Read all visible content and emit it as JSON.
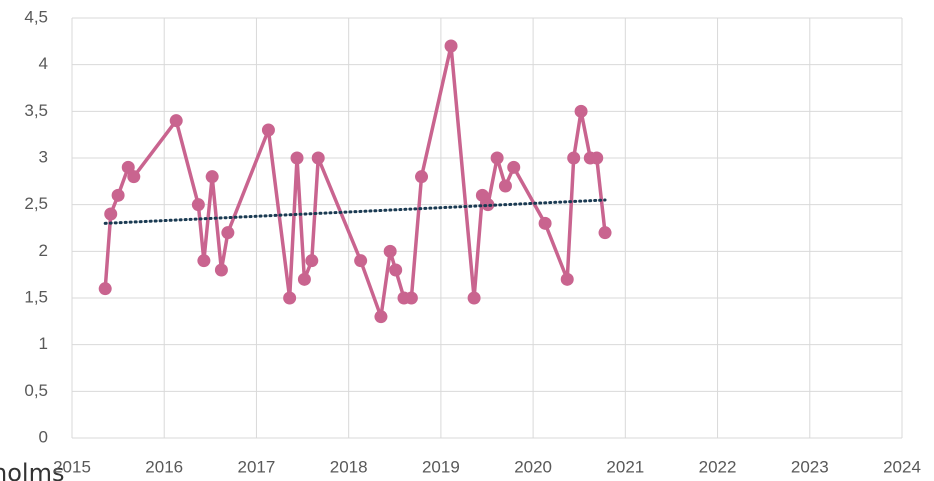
{
  "chart_data": {
    "type": "line",
    "annotation": "holms",
    "xlim": [
      2015,
      2024
    ],
    "xticks": [
      2015,
      2016,
      2017,
      2018,
      2019,
      2020,
      2021,
      2022,
      2023,
      2024
    ],
    "ylim": [
      0,
      4.5
    ],
    "yticks": [
      0,
      {
        "value": 0.5,
        "label": "0,5"
      },
      1,
      {
        "value": 1.5,
        "label": "1,5"
      },
      2,
      {
        "value": 2.5,
        "label": "2,5"
      },
      3,
      {
        "value": 3.5,
        "label": "3,5"
      },
      4,
      {
        "value": 4.5,
        "label": "4,5"
      }
    ],
    "grid": true,
    "x": [
      2015.36,
      2015.42,
      2015.5,
      2015.61,
      2015.67,
      2016.13,
      2016.37,
      2016.43,
      2016.52,
      2016.62,
      2016.69,
      2017.13,
      2017.36,
      2017.44,
      2017.52,
      2017.6,
      2017.67,
      2018.13,
      2018.35,
      2018.45,
      2018.51,
      2018.6,
      2018.68,
      2018.79,
      2019.11,
      2019.36,
      2019.45,
      2019.51,
      2019.61,
      2019.7,
      2019.79,
      2020.13,
      2020.37,
      2020.44,
      2020.52,
      2020.62,
      2020.69,
      2020.78
    ],
    "series": [
      {
        "color": "#c9648f",
        "values": [
          1.6,
          2.4,
          2.6,
          2.9,
          2.8,
          3.4,
          2.5,
          1.9,
          2.8,
          1.8,
          2.2,
          3.3,
          1.5,
          3.0,
          1.7,
          1.9,
          3.0,
          1.9,
          1.3,
          2.0,
          1.8,
          1.5,
          1.5,
          2.8,
          4.2,
          1.5,
          2.6,
          2.5,
          3.0,
          2.7,
          2.9,
          2.3,
          1.7,
          3.0,
          3.5,
          3.0,
          3.0,
          2.2
        ]
      }
    ],
    "trendline": {
      "color": "#1a3a52",
      "x": [
        2015.36,
        2020.78
      ],
      "values": [
        2.3,
        2.55
      ]
    }
  }
}
